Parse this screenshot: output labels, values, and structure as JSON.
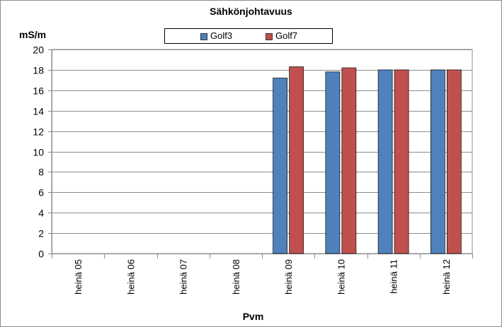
{
  "chart_data": {
    "type": "bar",
    "title": "Sähkönjohtavuus",
    "ylabel": "mS/m",
    "xlabel": "Pvm",
    "categories": [
      "heinä 05",
      "heinä 06",
      "heinä 07",
      "heinä 08",
      "heinä 09",
      "heinä 10",
      "heinä 11",
      "heinä 12"
    ],
    "series": [
      {
        "name": "Golf3",
        "color": "#4f81bd",
        "values": [
          null,
          null,
          null,
          null,
          17.2,
          17.8,
          18.0,
          18.0
        ]
      },
      {
        "name": "Golf7",
        "color": "#c0504d",
        "values": [
          null,
          null,
          null,
          null,
          18.3,
          18.2,
          18.0,
          18.0
        ]
      }
    ],
    "ylim": [
      0,
      20
    ],
    "yticks": [
      "0",
      "2",
      "4",
      "6",
      "8",
      "10",
      "12",
      "14",
      "16",
      "18",
      "20"
    ],
    "grid": true,
    "legend_position": "top-center"
  }
}
